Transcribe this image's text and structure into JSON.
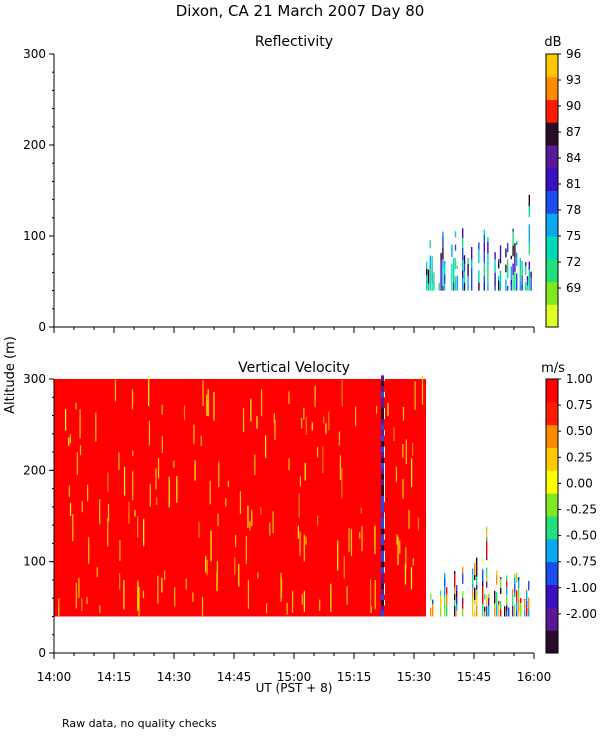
{
  "figure": {
    "main_title": "Dixon, CA 21 March 2007  Day  80",
    "ylabel": "Altitude (m)",
    "xlabel": "UT   (PST + 8)",
    "footer_note": "Raw data, no quality checks"
  },
  "chart_data": [
    {
      "type": "heatmap",
      "title": "Reflectivity",
      "colorbar_unit": "dB",
      "x_ticks": [
        "14:00",
        "14:15",
        "14:30",
        "14:45",
        "15:00",
        "15:15",
        "15:30",
        "15:45",
        "16:00"
      ],
      "xlim_minutes": [
        0,
        120
      ],
      "ylim": [
        0,
        300
      ],
      "y_ticks": [
        0,
        100,
        200,
        300
      ],
      "colorbar_labels": [
        "69",
        "72",
        "75",
        "78",
        "81",
        "84",
        "87",
        "90",
        "93",
        "96"
      ],
      "colorbar_colors": [
        "#dfff2a",
        "#7fe620",
        "#22e07a",
        "#00d8ba",
        "#0aa8f0",
        "#1a4cf0",
        "#3a10c0",
        "#5a1a98",
        "#2a0a2a",
        "#ff1a00",
        "#ff8c00",
        "#ffc800"
      ],
      "data_region": {
        "x_start_min": 93,
        "x_end_min": 120,
        "alt_min": 40,
        "alt_max": 160
      }
    },
    {
      "type": "heatmap",
      "title": "Vertical Velocity",
      "colorbar_unit": "m/s",
      "x_ticks": [
        "14:00",
        "14:15",
        "14:30",
        "14:45",
        "15:00",
        "15:15",
        "15:30",
        "15:45",
        "16:00"
      ],
      "xlim_minutes": [
        0,
        120
      ],
      "ylim": [
        0,
        300
      ],
      "y_ticks": [
        0,
        100,
        200,
        300
      ],
      "colorbar_labels": [
        "-2.00",
        "-1.00",
        "-0.75",
        "-0.50",
        "-0.25",
        "0.00",
        "0.25",
        "0.50",
        "0.75",
        "1.00"
      ],
      "colorbar_colors": [
        "#2a0a2a",
        "#5a1a98",
        "#3a10c0",
        "#1a4cf0",
        "#0aa8f0",
        "#22e07a",
        "#7fe620",
        "#ffff00",
        "#ffc800",
        "#ff8c00",
        "#ff1a00",
        "#ff0000"
      ],
      "data_region": {
        "solid_from_min": 0,
        "solid_to_min": 93,
        "solid_alt_min": 40,
        "solid_alt_max": 300,
        "sparse_to_min": 120,
        "sparse_alt_max": 160
      },
      "dominant_value": "1.00",
      "dark_streak_time": "15:22"
    }
  ]
}
